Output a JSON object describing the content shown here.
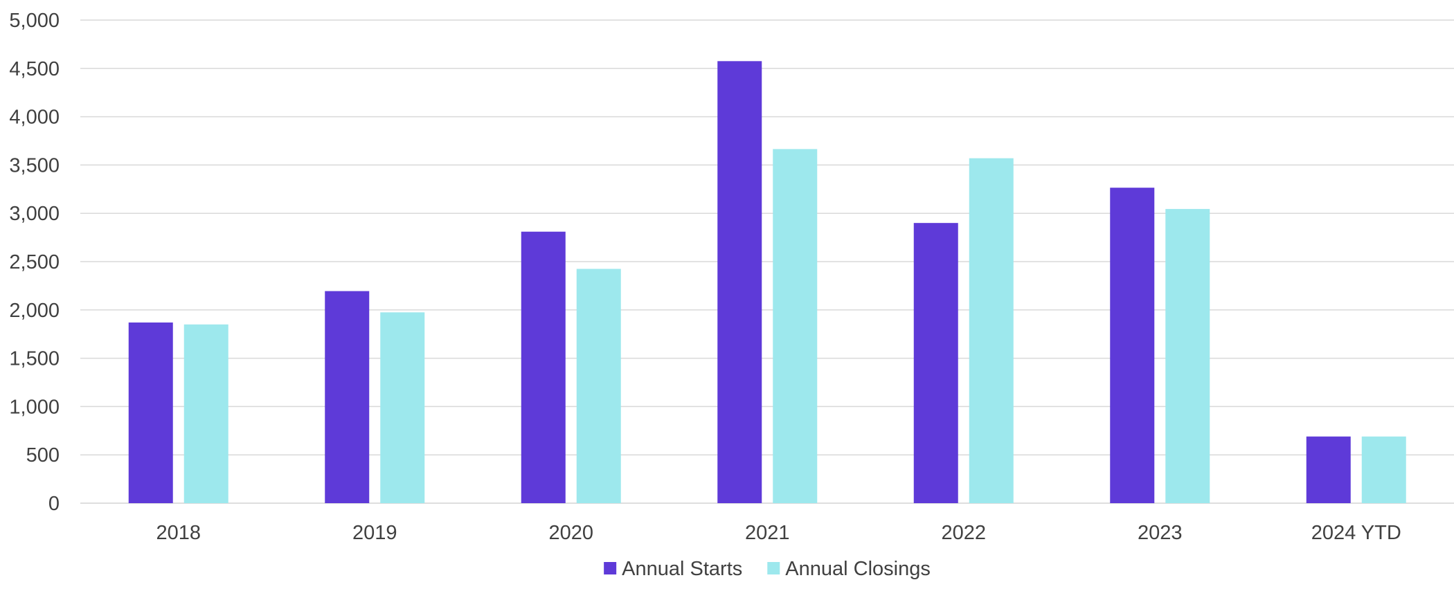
{
  "chart_data": {
    "type": "bar",
    "categories": [
      "2018",
      "2019",
      "2020",
      "2021",
      "2022",
      "2023",
      "2024 YTD"
    ],
    "series": [
      {
        "name": "Annual Starts",
        "color": "#5E3AD8",
        "values": [
          1870,
          2195,
          2810,
          4575,
          2900,
          3265,
          690
        ]
      },
      {
        "name": "Annual Closings",
        "color": "#9DE8ED",
        "values": [
          1850,
          1975,
          2425,
          3665,
          3570,
          3045,
          690
        ]
      }
    ],
    "yticks": [
      "0",
      "500",
      "1,000",
      "1,500",
      "2,000",
      "2,500",
      "3,000",
      "3,500",
      "4,000",
      "4,500",
      "5,000"
    ],
    "ylim": [
      0,
      5000
    ],
    "grid": true,
    "legend_position": "bottom-center",
    "gridline_color": "#D9D9D9",
    "text_color": "#404040"
  }
}
